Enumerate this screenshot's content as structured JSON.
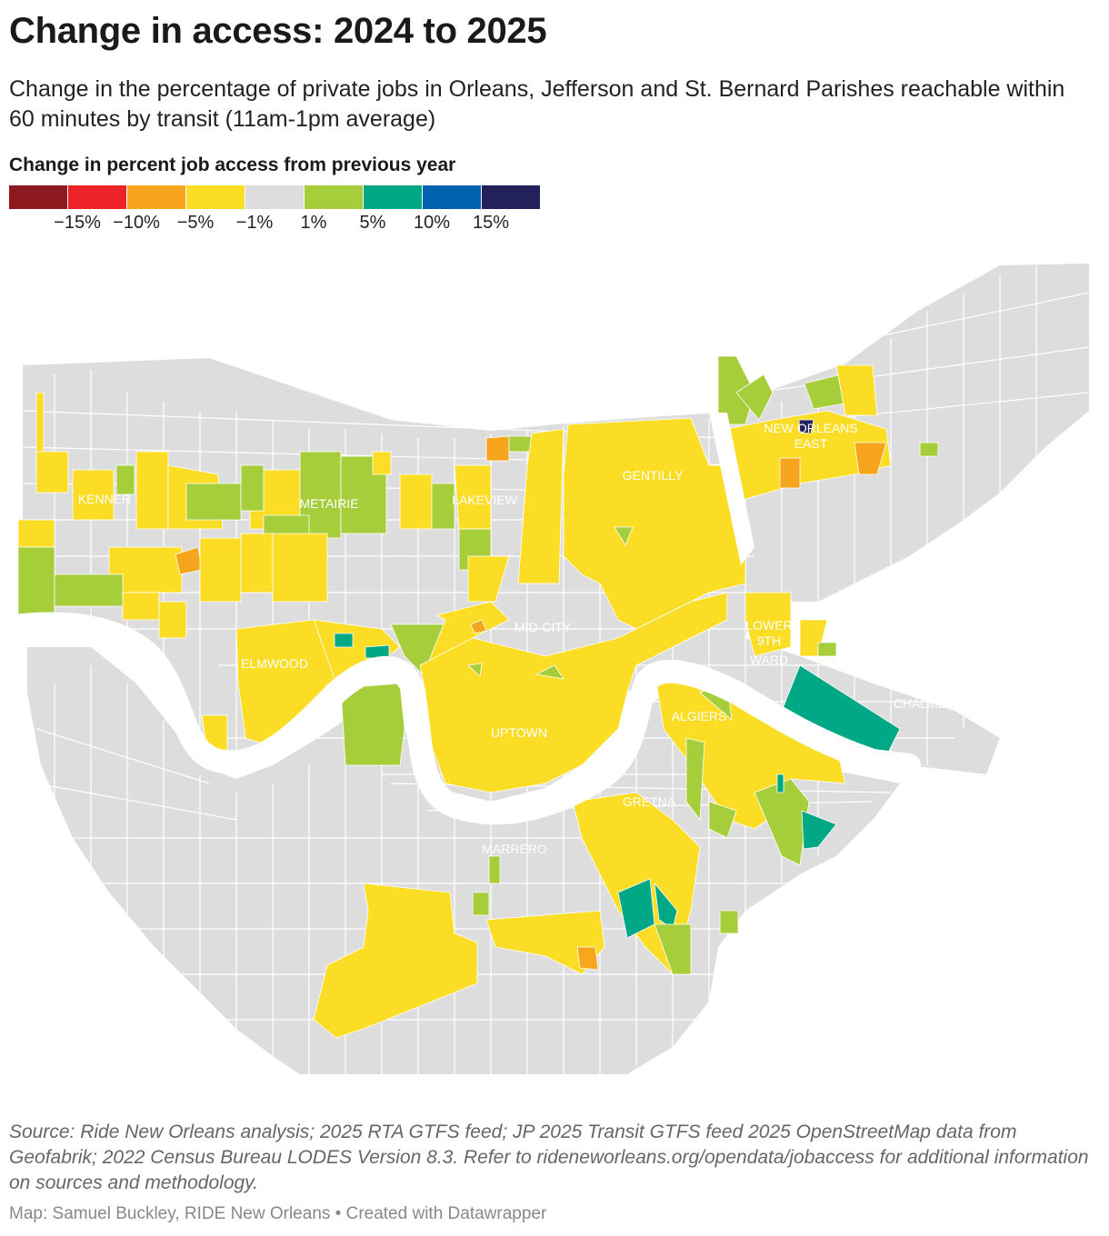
{
  "title": "Change in access: 2024 to 2025",
  "subtitle": "Change in the percentage of private jobs in Orleans, Jefferson and St. Bernard Parishes reachable within 60 minutes by transit (11am-1pm average)",
  "legend": {
    "title": "Change in percent job access from previous year",
    "colors": [
      "#8c1a1f",
      "#ec2227",
      "#f7a51c",
      "#fcdd26",
      "#dddddd",
      "#a6cd3a",
      "#00a886",
      "#0063b0",
      "#22215b"
    ],
    "labels": [
      "−15%",
      "−10%",
      "−5%",
      "−1%",
      "1%",
      "5%",
      "10%",
      "15%"
    ]
  },
  "map": {
    "land_color": "#dddddd",
    "river_color": "#ffffff",
    "labels": [
      {
        "name": "KENNER"
      },
      {
        "name": "METAIRIE"
      },
      {
        "name": "LAKEVIEW"
      },
      {
        "name": "GENTILLY"
      },
      {
        "name": "NEW ORLEANS"
      },
      {
        "name": "EAST"
      },
      {
        "name": "MID-CITY"
      },
      {
        "name": "LOWER"
      },
      {
        "name": "9TH"
      },
      {
        "name": "WARD"
      },
      {
        "name": "ELMWOOD"
      },
      {
        "name": "ALGIERS"
      },
      {
        "name": "CHALMETTE"
      },
      {
        "name": "UPTOWN"
      },
      {
        "name": "GRETNA"
      },
      {
        "name": "MARRERO"
      }
    ]
  },
  "footnote": "Source: Ride New Orleans analysis; 2025 RTA GTFS feed; JP 2025 Transit GTFS feed 2025 OpenStreetMap data from Geofabrik; 2022 Census Bureau LODES Version 8.3. Refer to rideneworleans.org/opendata/jobaccess for additional information on sources and methodology.",
  "credit": "Map: Samuel Buckley, RIDE New Orleans • Created with Datawrapper"
}
